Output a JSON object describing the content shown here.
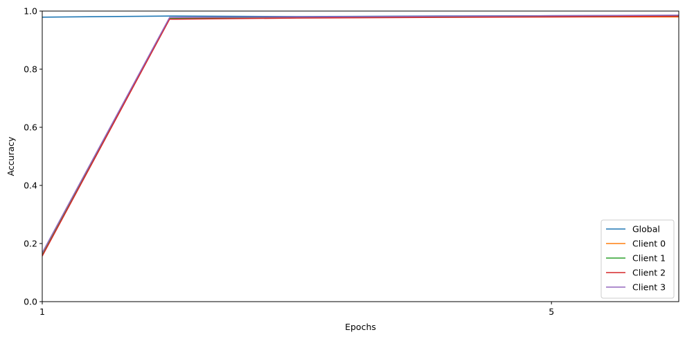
{
  "chart_data": {
    "type": "line",
    "title": "",
    "xlabel": "Epochs",
    "ylabel": "Accuracy",
    "x": [
      1,
      2,
      3,
      4,
      5,
      6
    ],
    "xlim": [
      1,
      6
    ],
    "ylim": [
      0,
      1
    ],
    "xticks": [
      1,
      5
    ],
    "xtick_labels": [
      "1",
      "5"
    ],
    "yticks": [
      0,
      0.2,
      0.4,
      0.6,
      0.8,
      1
    ],
    "ytick_labels": [
      "0.0",
      "0.2",
      "0.4",
      "0.6",
      "0.8",
      "1.0"
    ],
    "grid": false,
    "legend_position": "lower-right",
    "series": [
      {
        "name": "Global",
        "color": "#1f77b4",
        "values": [
          0.979,
          0.983,
          0.981,
          0.983,
          0.984,
          0.985
        ]
      },
      {
        "name": "Client 0",
        "color": "#ff7f0e",
        "values": [
          0.165,
          0.975,
          0.978,
          0.979,
          0.98,
          0.98
        ]
      },
      {
        "name": "Client 1",
        "color": "#2ca02c",
        "values": [
          0.16,
          0.974,
          0.977,
          0.979,
          0.981,
          0.982
        ]
      },
      {
        "name": "Client 2",
        "color": "#d62728",
        "values": [
          0.157,
          0.972,
          0.976,
          0.978,
          0.98,
          0.982
        ]
      },
      {
        "name": "Client 3",
        "color": "#9467bd",
        "values": [
          0.168,
          0.978,
          0.98,
          0.982,
          0.984,
          0.986
        ]
      }
    ]
  }
}
